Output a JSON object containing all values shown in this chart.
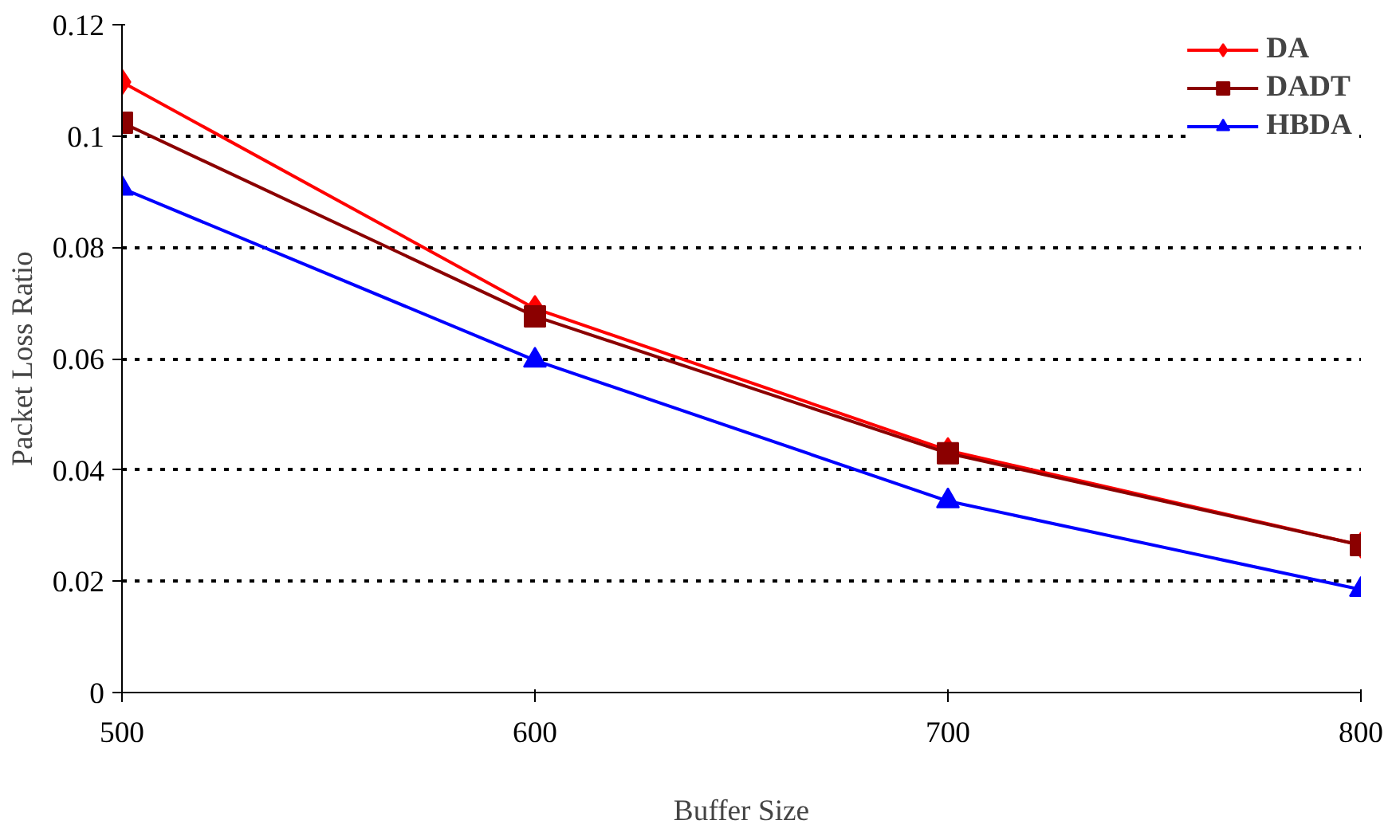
{
  "chart_data": {
    "type": "line",
    "xlabel": "Buffer Size",
    "ylabel": "Packet Loss Ratio",
    "x": [
      500,
      600,
      700,
      800
    ],
    "series": [
      {
        "name": "DA",
        "color": "#ff0000",
        "marker": "diamond",
        "values": [
          0.1097,
          0.069,
          0.0435,
          0.0265
        ]
      },
      {
        "name": "DADT",
        "color": "#8b0000",
        "marker": "square",
        "values": [
          0.1024,
          0.0676,
          0.043,
          0.0265
        ]
      },
      {
        "name": "HBDA",
        "color": "#0000ff",
        "marker": "triangle",
        "values": [
          0.0906,
          0.0597,
          0.0344,
          0.0185
        ]
      }
    ],
    "xlim": [
      500,
      800
    ],
    "xticks": [
      500,
      600,
      700,
      800
    ],
    "ylim": [
      0,
      0.12
    ],
    "yticks": [
      0,
      0.02,
      0.04,
      0.06,
      0.08,
      0.1,
      0.12
    ],
    "grid": "y",
    "legend": "top right",
    "line_style": "solid"
  }
}
